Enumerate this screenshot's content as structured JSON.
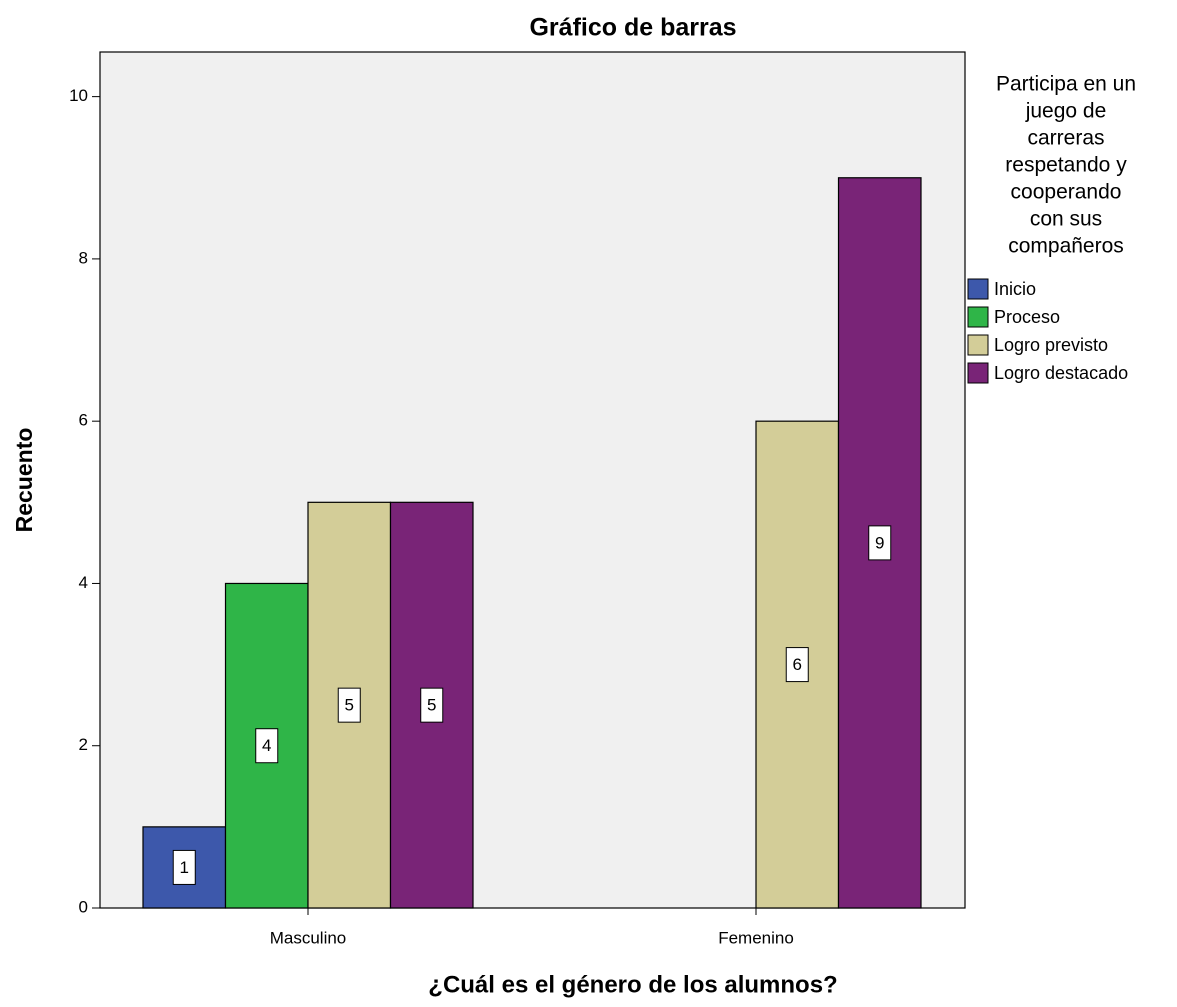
{
  "chart_data": {
    "type": "bar",
    "title": "Gráfico de barras",
    "x_label": "¿Cuál es el género de los alumnos?",
    "y_label": "Recuento",
    "legend_title": [
      "Participa en un",
      "juego de",
      "carreras",
      "respetando y",
      "cooperando",
      "con sus",
      "compañeros"
    ],
    "categories": [
      "Masculino",
      "Femenino"
    ],
    "series": [
      {
        "name": "Inicio",
        "color": "#3d58ab",
        "values": [
          1,
          null
        ]
      },
      {
        "name": "Proceso",
        "color": "#2fb548",
        "values": [
          4,
          null
        ]
      },
      {
        "name": "Logro previsto",
        "color": "#d3cd98",
        "values": [
          5,
          6
        ]
      },
      {
        "name": "Logro destacado",
        "color": "#792477",
        "values": [
          5,
          9
        ]
      }
    ],
    "ylim": [
      0,
      10.55
    ],
    "yticks": [
      0,
      2,
      4,
      6,
      8,
      10
    ],
    "legend": "right"
  }
}
